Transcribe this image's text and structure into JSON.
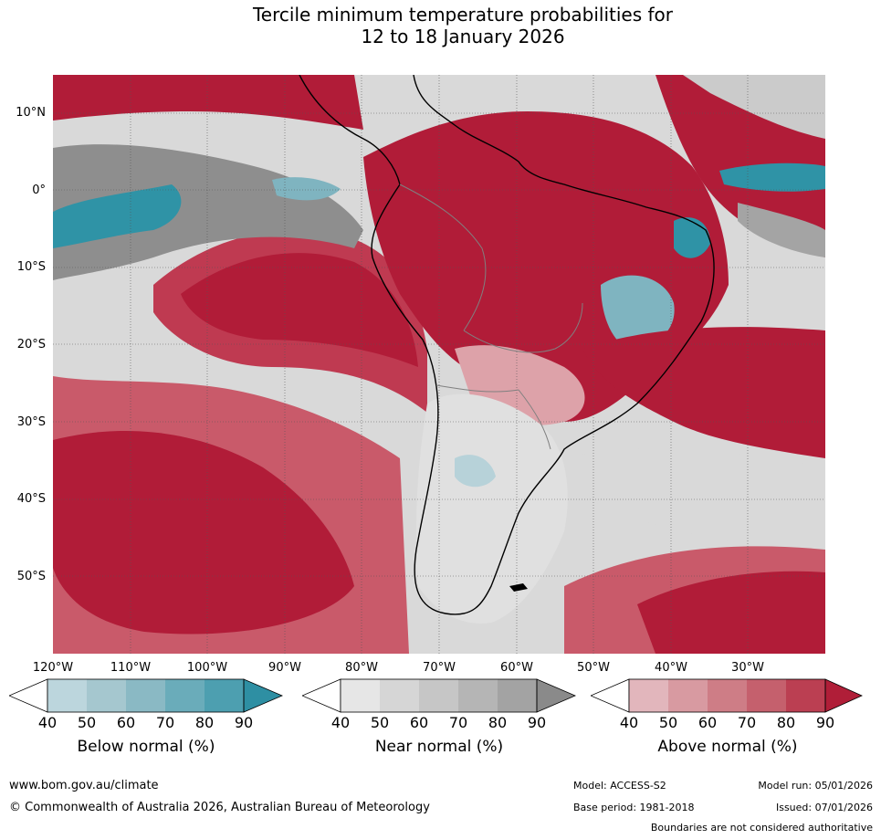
{
  "title": {
    "line1": "Tercile minimum temperature probabilities for",
    "line2": "12 to 18 January 2026"
  },
  "map": {
    "lat_labels": [
      "10°N",
      "0°",
      "10°S",
      "20°S",
      "30°S",
      "40°S",
      "50°S"
    ],
    "lon_labels": [
      "120°W",
      "110°W",
      "100°W",
      "90°W",
      "80°W",
      "70°W",
      "60°W",
      "50°W",
      "40°W",
      "30°W"
    ],
    "extent": {
      "lon_min": -120,
      "lon_max": -20,
      "lat_min": -60,
      "lat_max": 15
    },
    "colors": {
      "above_90": "#b11c38",
      "above_80": "#bf3a51",
      "above_70": "#c95a6a",
      "above_60": "#d4808c",
      "above_50": "#dda2a9",
      "above_40": "#e8c2c6",
      "near_80": "#8e8e8e",
      "near_70": "#a4a4a4",
      "near_60": "#b8b8b8",
      "near_50": "#cbcbcb",
      "near_40": "#e0e0e0",
      "below_80": "#2f93a6",
      "below_60": "#7fb4c0",
      "below_40": "#b7d2d9",
      "land_outline": "#000000",
      "border": "#808080"
    }
  },
  "colorbars": [
    {
      "title": "Below normal (%)",
      "ticks": [
        "40",
        "50",
        "60",
        "70",
        "80",
        "90"
      ],
      "colors": [
        "#ffffff",
        "#bcd6dd",
        "#a5c7cf",
        "#8ab9c4",
        "#6aacba",
        "#4d9fb0",
        "#2e8fa3"
      ]
    },
    {
      "title": "Near normal (%)",
      "ticks": [
        "40",
        "50",
        "60",
        "70",
        "80",
        "90"
      ],
      "colors": [
        "#ffffff",
        "#e6e6e6",
        "#d6d6d6",
        "#c6c6c6",
        "#b5b5b5",
        "#a3a3a3",
        "#8a8a8a"
      ]
    },
    {
      "title": "Above normal (%)",
      "ticks": [
        "40",
        "50",
        "60",
        "70",
        "80",
        "90"
      ],
      "colors": [
        "#ffffff",
        "#e2b6bc",
        "#d89aa1",
        "#ce7d86",
        "#c5606d",
        "#bb3f52",
        "#b01e38"
      ]
    }
  ],
  "footer": {
    "website": "www.bom.gov.au/climate",
    "copyright": "© Commonwealth of Australia 2026, Australian Bureau of Meteorology",
    "model": "Model: ACCESS-S2",
    "base_period": "Base period: 1981-2018",
    "model_run": "Model run: 05/01/2026",
    "issued": "Issued: 07/01/2026",
    "disclaimer": "Boundaries are not considered authoritative"
  }
}
